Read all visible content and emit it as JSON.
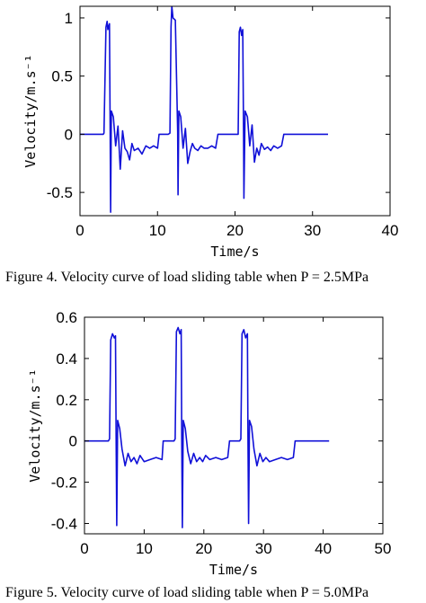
{
  "chart_data": [
    {
      "type": "line",
      "title": "",
      "xlabel": "Time/s",
      "ylabel": "Velocity/m.s⁻¹",
      "xlim": [
        0,
        40
      ],
      "ylim": [
        -0.7,
        1.1
      ],
      "xticks": [
        0,
        10,
        20,
        30,
        40
      ],
      "yticks": [
        -0.5,
        0,
        0.5,
        1
      ],
      "grid": false,
      "color": "#1010d8",
      "caption": "Figure 4. Velocity curve of load sliding table when P = 2.5MPa",
      "series": [
        {
          "x": [
            0,
            3.0,
            3.1,
            3.35,
            3.5,
            3.6,
            3.8,
            3.9,
            3.95,
            4.05,
            4.3,
            4.6,
            4.9,
            5.2,
            5.5,
            5.8,
            6.1,
            6.4,
            6.7,
            7.0,
            7.5,
            8.0,
            8.5,
            9.0,
            9.5,
            10.0,
            10.2,
            10.8,
            11.4,
            11.6,
            11.75,
            11.85,
            12.0,
            12.3,
            12.6,
            12.65,
            12.75,
            13.0,
            13.3,
            13.6,
            13.9,
            14.2,
            14.5,
            14.8,
            15.2,
            15.6,
            16.0,
            16.5,
            17.0,
            17.5,
            17.8,
            18.0,
            18.5,
            19.5,
            20.0,
            20.4,
            20.55,
            20.7,
            20.85,
            21.0,
            21.1,
            21.15,
            21.3,
            21.6,
            21.9,
            22.2,
            22.5,
            22.8,
            23.1,
            23.4,
            23.8,
            24.2,
            24.6,
            25.0,
            25.5,
            26.0,
            26.3,
            26.6,
            27.0,
            28.0,
            30.0,
            32.0
          ],
          "y": [
            0,
            0,
            0.01,
            0.92,
            0.97,
            0.9,
            0.95,
            0.0,
            -0.67,
            0.2,
            0.15,
            -0.1,
            0.07,
            -0.3,
            0.03,
            -0.12,
            -0.15,
            -0.22,
            -0.08,
            -0.14,
            -0.12,
            -0.17,
            -0.1,
            -0.12,
            -0.1,
            -0.12,
            0.0,
            0.0,
            0.0,
            0.01,
            0.92,
            1.1,
            1.0,
            0.98,
            0.02,
            -0.52,
            0.2,
            0.15,
            -0.12,
            0.05,
            -0.25,
            -0.15,
            -0.08,
            -0.12,
            -0.14,
            -0.1,
            -0.12,
            -0.12,
            -0.1,
            -0.12,
            0.0,
            0.0,
            0.0,
            0.0,
            0.0,
            0.0,
            0.88,
            0.92,
            0.85,
            0.9,
            0.0,
            -0.55,
            0.2,
            0.15,
            -0.1,
            0.08,
            -0.24,
            -0.12,
            -0.18,
            -0.08,
            -0.13,
            -0.11,
            -0.14,
            -0.1,
            -0.12,
            -0.1,
            0.0,
            0.0,
            0.0,
            0.0,
            0.0,
            0.0
          ]
        }
      ]
    },
    {
      "type": "line",
      "title": "",
      "xlabel": "Time/s",
      "ylabel": "Velocity/m.s⁻¹",
      "xlim": [
        0,
        50
      ],
      "ylim": [
        -0.45,
        0.6
      ],
      "xticks": [
        0,
        10,
        20,
        30,
        40,
        50
      ],
      "yticks": [
        -0.4,
        -0.2,
        0,
        0.2,
        0.4,
        0.6
      ],
      "grid": false,
      "color": "#1010d8",
      "caption": "Figure 5. Velocity curve of load sliding table when P = 5.0MPa",
      "series": [
        {
          "x": [
            0,
            4.0,
            4.2,
            4.4,
            4.7,
            5.0,
            5.2,
            5.3,
            5.4,
            5.55,
            5.9,
            6.3,
            6.8,
            7.3,
            7.8,
            8.3,
            8.8,
            9.3,
            10.0,
            11.0,
            12.0,
            13.0,
            13.2,
            14.0,
            15.0,
            15.2,
            15.4,
            15.7,
            16.0,
            16.2,
            16.3,
            16.4,
            16.55,
            16.9,
            17.3,
            17.8,
            18.3,
            18.8,
            19.3,
            19.8,
            20.3,
            21.0,
            22.0,
            23.0,
            24.0,
            24.3,
            25.0,
            26.0,
            26.2,
            26.4,
            26.7,
            27.0,
            27.3,
            27.4,
            27.5,
            27.65,
            28.0,
            28.4,
            28.9,
            29.4,
            29.9,
            30.4,
            31.0,
            32.0,
            33.0,
            34.0,
            35.0,
            35.3,
            36.0,
            38.0,
            41.0
          ],
          "y": [
            0,
            0,
            0.01,
            0.49,
            0.52,
            0.5,
            0.51,
            0.02,
            -0.41,
            0.1,
            0.06,
            -0.04,
            -0.12,
            -0.06,
            -0.1,
            -0.08,
            -0.11,
            -0.07,
            -0.1,
            -0.09,
            -0.08,
            -0.09,
            0.0,
            0.0,
            0.0,
            0.01,
            0.53,
            0.55,
            0.52,
            0.54,
            0.02,
            -0.42,
            0.1,
            0.06,
            -0.05,
            -0.11,
            -0.06,
            -0.1,
            -0.08,
            -0.1,
            -0.07,
            -0.09,
            -0.08,
            -0.09,
            -0.08,
            0.0,
            0.0,
            0.0,
            0.01,
            0.52,
            0.54,
            0.5,
            0.52,
            0.02,
            -0.4,
            0.1,
            0.07,
            -0.04,
            -0.12,
            -0.06,
            -0.1,
            -0.08,
            -0.1,
            -0.09,
            -0.08,
            -0.09,
            -0.08,
            0.0,
            0.0,
            0.0,
            0.0
          ]
        }
      ]
    }
  ]
}
